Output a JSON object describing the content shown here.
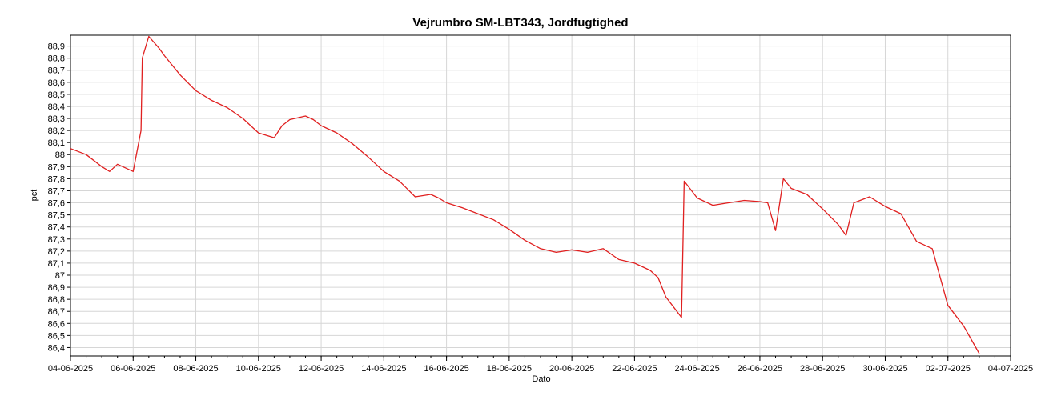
{
  "chart_data": {
    "type": "line",
    "title": "Vejrumbro SM-LBT343, Jordfugtighed",
    "xlabel": "Dato",
    "ylabel": "pct",
    "xlim": [
      "04-06-2025",
      "04-07-2025"
    ],
    "ylim": [
      86.33,
      88.99
    ],
    "grid": true,
    "line_color": "#e02020",
    "x_tick_labels": [
      "04-06-2025",
      "06-06-2025",
      "08-06-2025",
      "10-06-2025",
      "12-06-2025",
      "14-06-2025",
      "16-06-2025",
      "18-06-2025",
      "20-06-2025",
      "22-06-2025",
      "24-06-2025",
      "26-06-2025",
      "28-06-2025",
      "30-06-2025",
      "02-07-2025",
      "04-07-2025"
    ],
    "y_tick_labels": [
      "86,4",
      "86,5",
      "86,6",
      "86,7",
      "86,8",
      "86,9",
      "87",
      "87,1",
      "87,2",
      "87,3",
      "87,4",
      "87,5",
      "87,6",
      "87,7",
      "87,8",
      "87,9",
      "88",
      "88,1",
      "88,2",
      "88,3",
      "88,4",
      "88,5",
      "88,6",
      "88,7",
      "88,8",
      "88,9"
    ],
    "y_tick_values": [
      86.4,
      86.5,
      86.6,
      86.7,
      86.8,
      86.9,
      87.0,
      87.1,
      87.2,
      87.3,
      87.4,
      87.5,
      87.6,
      87.7,
      87.8,
      87.9,
      88.0,
      88.1,
      88.2,
      88.3,
      88.4,
      88.5,
      88.6,
      88.7,
      88.8,
      88.9
    ],
    "series": [
      {
        "x": [
          "2025-06-04 00:00",
          "2025-06-04 12:00",
          "2025-06-05 00:00",
          "2025-06-05 06:00",
          "2025-06-05 12:00",
          "2025-06-05 18:00",
          "2025-06-06 00:00",
          "2025-06-06 06:00",
          "2025-06-06 07:00",
          "2025-06-06 12:00",
          "2025-06-06 20:00",
          "2025-06-07 00:00",
          "2025-06-07 12:00",
          "2025-06-08 00:00",
          "2025-06-08 12:00",
          "2025-06-09 00:00",
          "2025-06-09 12:00",
          "2025-06-10 00:00",
          "2025-06-10 12:00",
          "2025-06-10 18:00",
          "2025-06-11 00:00",
          "2025-06-11 12:00",
          "2025-06-11 18:00",
          "2025-06-12 00:00",
          "2025-06-12 12:00",
          "2025-06-13 00:00",
          "2025-06-13 12:00",
          "2025-06-14 00:00",
          "2025-06-14 12:00",
          "2025-06-15 00:00",
          "2025-06-15 12:00",
          "2025-06-15 18:00",
          "2025-06-16 00:00",
          "2025-06-16 12:00",
          "2025-06-17 00:00",
          "2025-06-17 12:00",
          "2025-06-18 00:00",
          "2025-06-18 12:00",
          "2025-06-19 00:00",
          "2025-06-19 12:00",
          "2025-06-20 00:00",
          "2025-06-20 12:00",
          "2025-06-21 00:00",
          "2025-06-21 12:00",
          "2025-06-22 00:00",
          "2025-06-22 12:00",
          "2025-06-22 18:00",
          "2025-06-23 00:00",
          "2025-06-23 12:00",
          "2025-06-23 14:00",
          "2025-06-24 00:00",
          "2025-06-24 12:00",
          "2025-06-25 00:00",
          "2025-06-25 12:00",
          "2025-06-26 00:00",
          "2025-06-26 06:00",
          "2025-06-26 12:00",
          "2025-06-26 18:00",
          "2025-06-27 00:00",
          "2025-06-27 12:00",
          "2025-06-28 00:00",
          "2025-06-28 12:00",
          "2025-06-28 18:00",
          "2025-06-29 00:00",
          "2025-06-29 12:00",
          "2025-06-30 00:00",
          "2025-06-30 12:00",
          "2025-07-01 00:00",
          "2025-07-01 12:00",
          "2025-07-02 00:00",
          "2025-07-02 12:00",
          "2025-07-03 00:00"
        ],
        "values": [
          88.05,
          88.0,
          87.9,
          87.86,
          87.92,
          87.89,
          87.86,
          88.2,
          88.8,
          88.98,
          88.88,
          88.82,
          88.66,
          88.53,
          88.45,
          88.39,
          88.3,
          88.18,
          88.14,
          88.24,
          88.29,
          88.32,
          88.29,
          88.24,
          88.18,
          88.09,
          87.98,
          87.86,
          87.78,
          87.65,
          87.67,
          87.64,
          87.6,
          87.56,
          87.51,
          87.46,
          87.38,
          87.29,
          87.22,
          87.19,
          87.21,
          87.19,
          87.22,
          87.13,
          87.1,
          87.04,
          86.98,
          86.82,
          86.65,
          87.78,
          87.64,
          87.58,
          87.6,
          87.62,
          87.61,
          87.6,
          87.37,
          87.8,
          87.72,
          87.67,
          87.55,
          87.42,
          87.33,
          87.6,
          87.65,
          87.57,
          87.51,
          87.28,
          87.22,
          86.75,
          86.58,
          86.35
        ]
      }
    ]
  }
}
